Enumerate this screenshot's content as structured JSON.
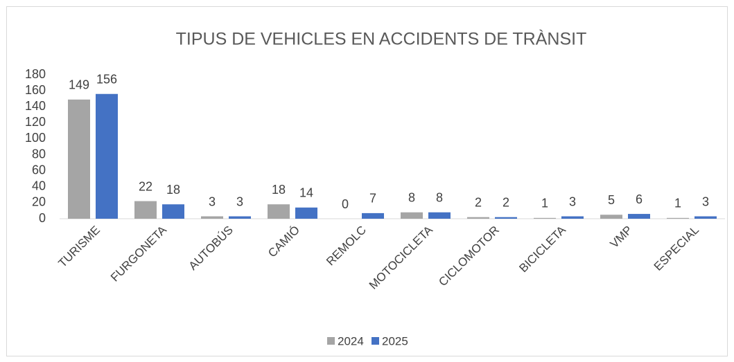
{
  "chart_data": {
    "type": "bar",
    "title": "TIPUS DE VEHICLES EN ACCIDENTS DE TRÀNSIT",
    "categories": [
      "TURISME",
      "FURGONETA",
      "AUTOBÚS",
      "CAMIÓ",
      "REMOLC",
      "MOTOCICLETA",
      "CICLOMOTOR",
      "BICICLETA",
      "VMP",
      "ESPECIAL"
    ],
    "series": [
      {
        "name": "2024",
        "color": "#a5a5a5",
        "values": [
          149,
          22,
          3,
          18,
          0,
          8,
          2,
          1,
          5,
          1
        ]
      },
      {
        "name": "2025",
        "color": "#4472c4",
        "values": [
          156,
          18,
          3,
          14,
          7,
          8,
          2,
          3,
          6,
          3
        ]
      }
    ],
    "ylim": [
      0,
      180
    ],
    "yticks": [
      0,
      20,
      40,
      60,
      80,
      100,
      120,
      140,
      160,
      180
    ],
    "grid": false,
    "legend": "bottom"
  }
}
